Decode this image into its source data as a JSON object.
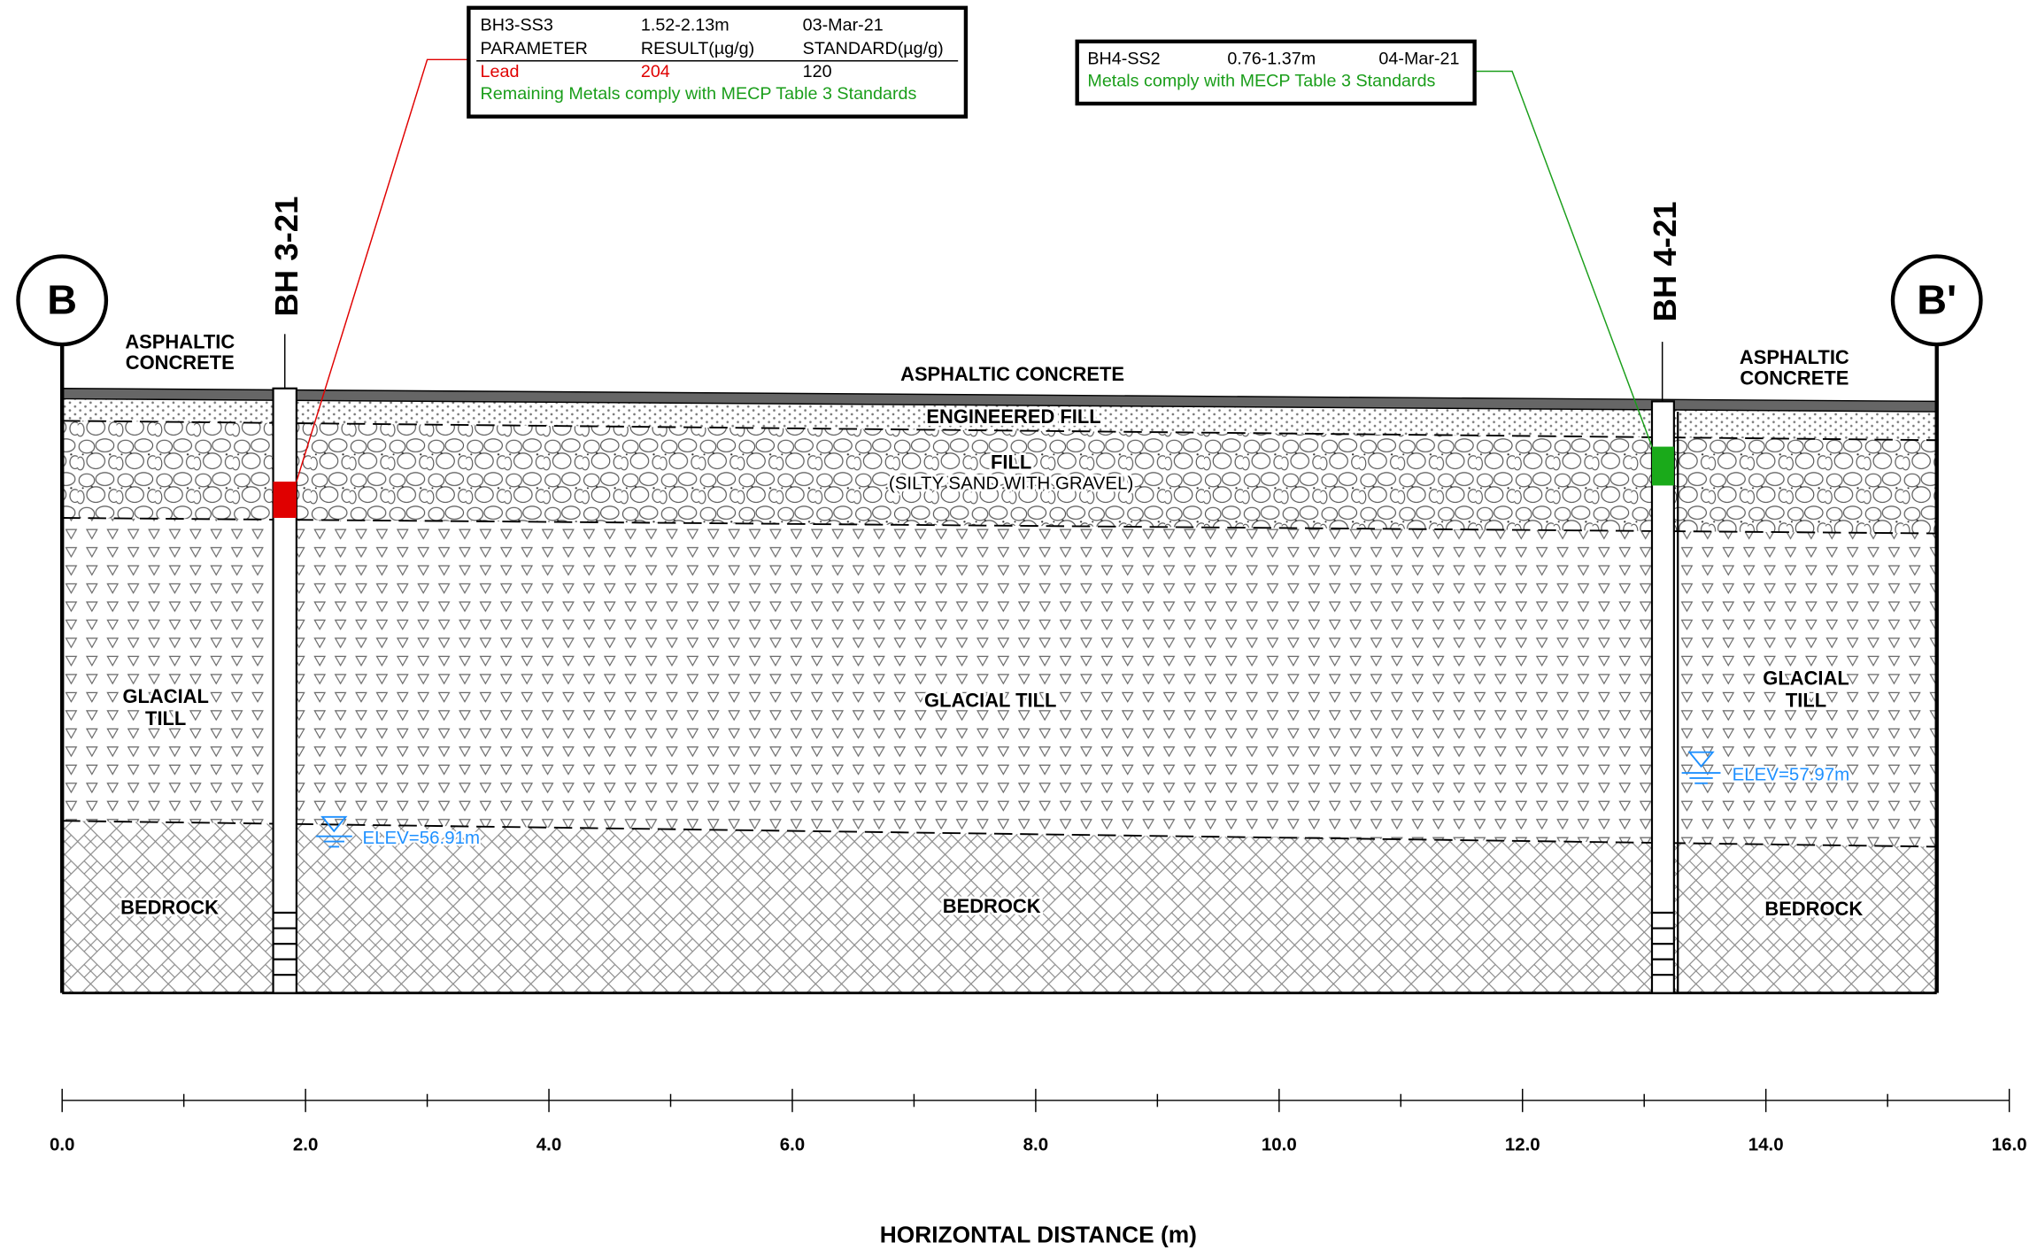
{
  "markers": {
    "left": "B",
    "right": "B'"
  },
  "boreholes": [
    {
      "label": "BH 3-21",
      "water_level": "ELEV=56.91m"
    },
    {
      "label": "BH 4-21",
      "water_level": "ELEV=57.97m"
    }
  ],
  "sample_boxes": [
    {
      "rows": [
        [
          "BH3-SS3",
          "1.52-2.13m",
          "03-Mar-21"
        ],
        [
          "PARAMETER",
          "RESULT(µg/g)",
          "STANDARD(µg/g)"
        ],
        [
          "Lead",
          "204",
          "120"
        ]
      ],
      "note": "Remaining Metals comply with MECP Table 3 Standards"
    },
    {
      "rows": [
        [
          "BH4-SS2",
          "0.76-1.37m",
          "04-Mar-21"
        ]
      ],
      "note": "Metals comply with MECP Table 3 Standards"
    }
  ],
  "layer_labels": {
    "asphalt_left": [
      "ASPHALTIC",
      "CONCRETE"
    ],
    "asphalt_center": "ASPHALTIC CONCRETE",
    "asphalt_right": [
      "ASPHALTIC",
      "CONCRETE"
    ],
    "engineered_fill": "ENGINEERED FILL",
    "fill": "FILL",
    "fill_description": "(SILTY SAND WITH GRAVEL)",
    "till_left": [
      "GLACIAL",
      "TILL"
    ],
    "till_center": "GLACIAL TILL",
    "till_right": [
      "GLACIAL",
      "TILL"
    ],
    "bedrock_left": "BEDROCK",
    "bedrock_center": "BEDROCK",
    "bedrock_right": "BEDROCK"
  },
  "axis": {
    "ticks": [
      "0.0",
      "2.0",
      "4.0",
      "6.0",
      "8.0",
      "10.0",
      "12.0",
      "14.0",
      "16.0"
    ],
    "title": "HORIZONTAL DISTANCE (m)"
  }
}
